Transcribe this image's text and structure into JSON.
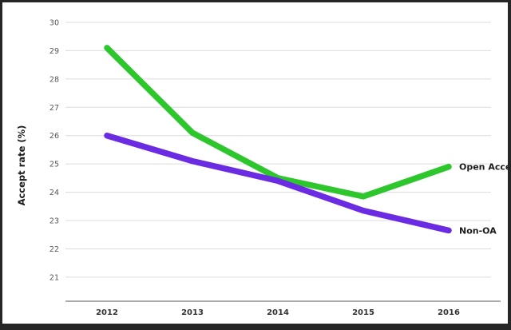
{
  "chart_data": {
    "type": "line",
    "title": "",
    "categories": [
      "2012",
      "2013",
      "2014",
      "2015",
      "2016"
    ],
    "series": [
      {
        "name": "Open Access",
        "color": "#2dc62d",
        "values": [
          29.1,
          26.1,
          24.5,
          23.85,
          24.9
        ]
      },
      {
        "name": "Non-OA",
        "color": "#6a2be2",
        "values": [
          26.0,
          25.1,
          24.4,
          23.35,
          22.65
        ]
      }
    ],
    "xlabel": "",
    "ylabel": "Accept rate (%)",
    "ylim": [
      21,
      30
    ],
    "y_ticks": [
      30,
      29,
      28,
      27,
      26,
      25,
      24,
      23,
      22,
      21
    ],
    "grid": "horizontal",
    "legend_position": "labels-at-line-ends",
    "colors": {
      "gridline": "#dcdcdc",
      "axis_line": "#777777",
      "tick_label": "#555555",
      "x_label": "#333333",
      "end_label": "#1a1a1a",
      "frame_border": "#262626",
      "background": "#ffffff"
    }
  }
}
